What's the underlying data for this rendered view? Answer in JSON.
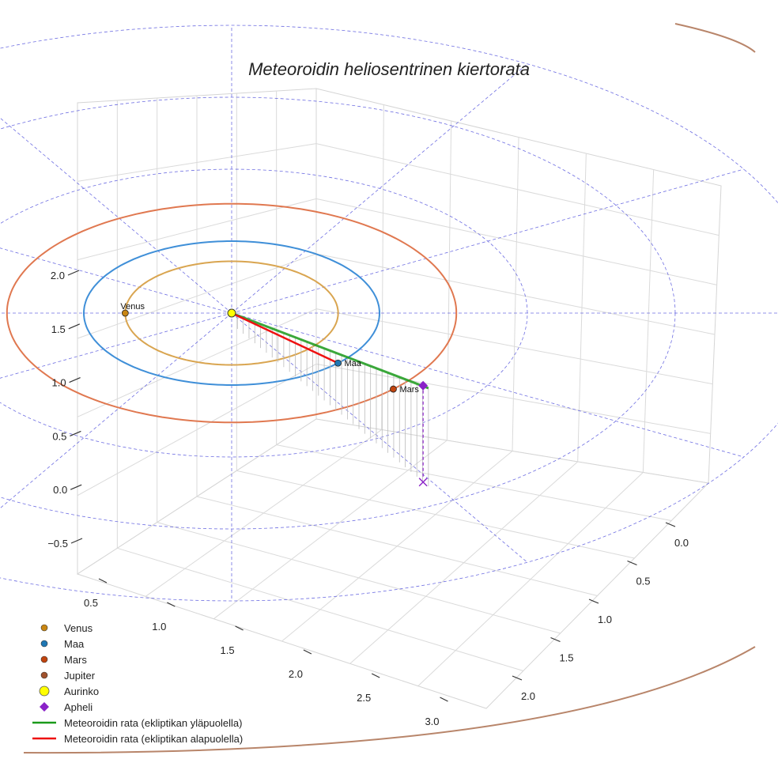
{
  "chart_data": {
    "type": "scatter3d",
    "title": "Meteoroidin heliosentrinen kiertorata",
    "axes": {
      "x": {
        "ticks": [
          "0.5",
          "1.0",
          "1.5",
          "2.0",
          "2.5",
          "3.0"
        ],
        "range": [
          0.35,
          3.15
        ]
      },
      "y": {
        "ticks": [
          "0.0",
          "0.5",
          "1.0",
          "1.5",
          "2.0"
        ],
        "range": [
          -0.25,
          2.25
        ]
      },
      "z": {
        "ticks": [
          "−0.5",
          "0.0",
          "0.5",
          "1.0",
          "1.5",
          "2.0"
        ],
        "range": [
          -0.6,
          2.2
        ]
      }
    },
    "grid": true,
    "ecliptic_grid": {
      "rings_au": [
        2,
        3,
        4
      ],
      "spokes_deg": [
        0,
        30,
        60,
        90,
        120,
        150,
        180,
        210,
        240,
        270,
        300,
        330
      ],
      "style": "dashed",
      "color": "#5555dd"
    },
    "planets": [
      {
        "name": "Venus",
        "orbit_radius_au": 0.72,
        "marker_angle_deg": 180,
        "color": "#c98612",
        "orbit_color": "#d9a550"
      },
      {
        "name": "Maa",
        "orbit_radius_au": 1.0,
        "marker_angle_deg": 316,
        "color": "#1f77b4",
        "orbit_color": "#3f8fd8"
      },
      {
        "name": "Mars",
        "orbit_radius_au": 1.52,
        "marker_angle_deg": 316,
        "color": "#c1440e",
        "orbit_color": "#e07850"
      },
      {
        "name": "Jupiter",
        "orbit_radius_au": 5.2,
        "marker_angle_deg": null,
        "color": "#a0522d",
        "orbit_color": "#b8856a"
      }
    ],
    "sun": {
      "name": "Aurinko",
      "color": "#ffff00"
    },
    "aphelion": {
      "name": "Apheli",
      "distance_au": 1.8,
      "angle_deg": 316,
      "height": 0.55,
      "color": "#8a22c8"
    },
    "trajectory": {
      "angle_deg": 316,
      "above_ecliptic": {
        "name": "Meteoroidin rata (ekliptikan yläpuolella)",
        "color": "#1a9a1a",
        "r_start_au": 0.0,
        "r_end_au": 1.85
      },
      "below_ecliptic": {
        "name": "Meteoroidin rata (ekliptikan alapuolella)",
        "color": "#ee1111",
        "r_start_au": 0.0,
        "r_end_au": 1.0
      }
    }
  },
  "legend": {
    "position": "bottom-left",
    "items": [
      {
        "label": "Venus",
        "kind": "dot",
        "color": "#c98612"
      },
      {
        "label": "Maa",
        "kind": "dot",
        "color": "#1f77b4"
      },
      {
        "label": "Mars",
        "kind": "dot",
        "color": "#c1440e"
      },
      {
        "label": "Jupiter",
        "kind": "dot",
        "color": "#a0522d"
      },
      {
        "label": "Aurinko",
        "kind": "sun",
        "color": "#ffff00"
      },
      {
        "label": "Apheli",
        "kind": "diamond",
        "color": "#8a22c8"
      },
      {
        "label": "Meteoroidin rata (ekliptikan yläpuolella)",
        "kind": "line",
        "color": "#1a9a1a"
      },
      {
        "label": "Meteoroidin rata (ekliptikan alapuolella)",
        "kind": "line",
        "color": "#ee1111"
      }
    ]
  }
}
